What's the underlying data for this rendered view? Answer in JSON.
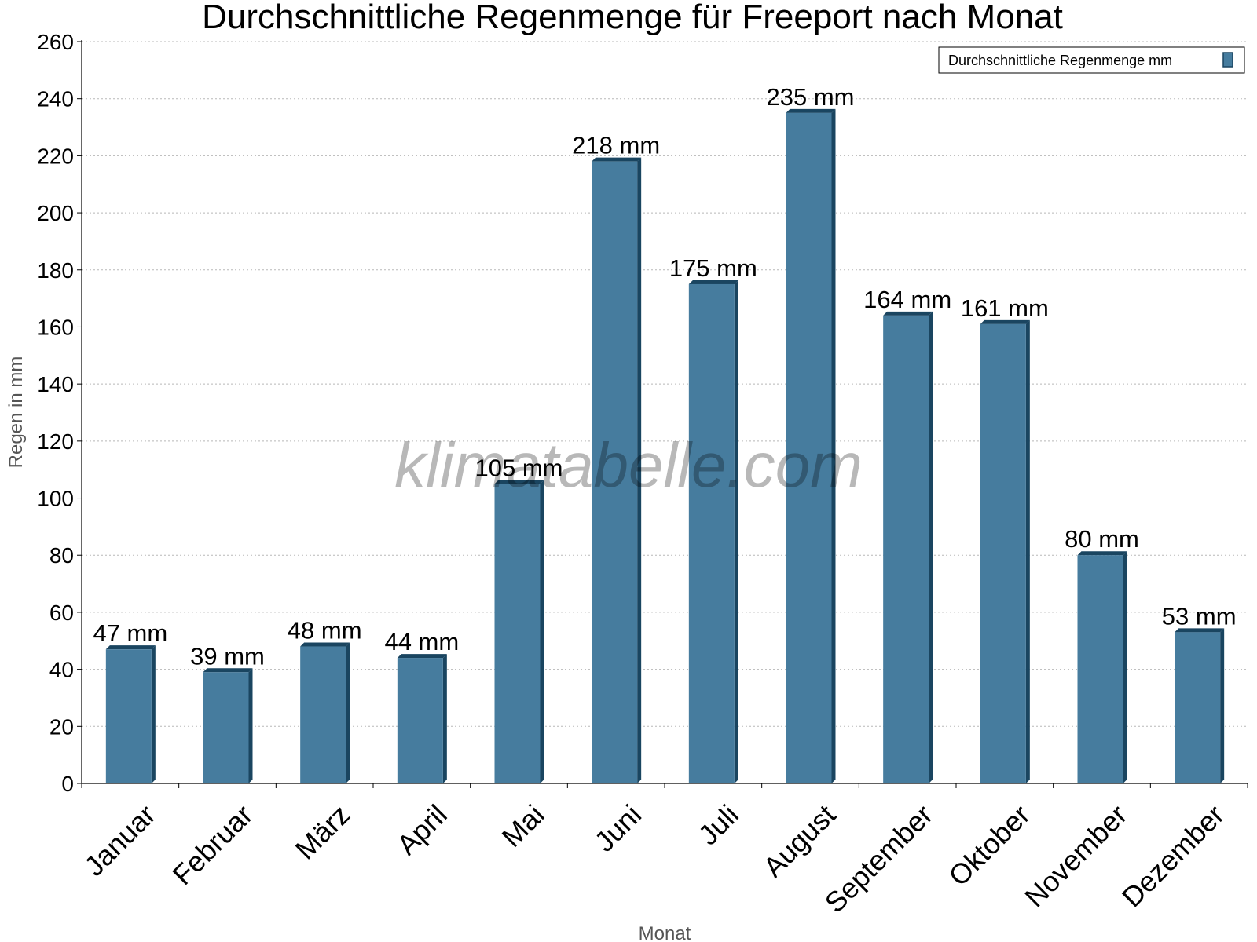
{
  "chart_data": {
    "type": "bar",
    "title": "Durchschnittliche Regenmenge für Freeport nach Monat",
    "xlabel": "Monat",
    "ylabel": "Regen in mm",
    "categories": [
      "Januar",
      "Februar",
      "März",
      "April",
      "Mai",
      "Juni",
      "Juli",
      "August",
      "September",
      "Oktober",
      "November",
      "Dezember"
    ],
    "series": [
      {
        "name": "Durchschnittliche Regenmenge mm",
        "values": [
          47,
          39,
          48,
          44,
          105,
          218,
          175,
          235,
          164,
          161,
          80,
          53
        ],
        "data_labels": [
          "47 mm",
          "39 mm",
          "48 mm",
          "44 mm",
          "105 mm",
          "218 mm",
          "175 mm",
          "235 mm",
          "164 mm",
          "161 mm",
          "80 mm",
          "53 mm"
        ],
        "color": "#467c9e"
      }
    ],
    "ylim": [
      0,
      260
    ],
    "yticks": [
      0,
      20,
      40,
      60,
      80,
      100,
      120,
      140,
      160,
      180,
      200,
      220,
      240,
      260
    ],
    "grid": true,
    "legend_position": "top-right",
    "watermark": "klimatabelle.com"
  }
}
